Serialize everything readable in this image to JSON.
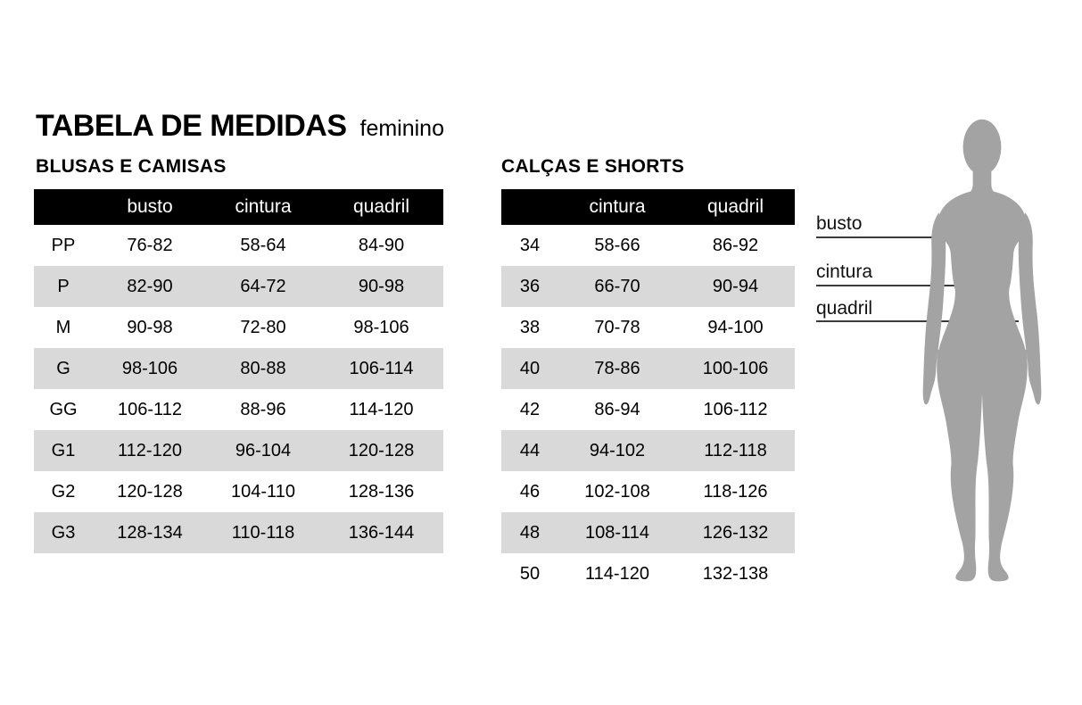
{
  "page": {
    "title": "TABELA DE MEDIDAS",
    "subtitle": "feminino"
  },
  "colors": {
    "table_header_bg": "#000000",
    "table_header_text": "#ffffff",
    "alt_row_bg": "#d9d9d9",
    "silhouette_gray": "#a3a3a3",
    "measure_line": "#3a3a3a"
  },
  "tables": [
    {
      "id": "blusas",
      "title": "BLUSAS E CAMISAS",
      "columns": [
        "",
        "busto",
        "cintura",
        "quadril"
      ],
      "rows": [
        [
          "PP",
          "76-82",
          "58-64",
          "84-90"
        ],
        [
          "P",
          "82-90",
          "64-72",
          "90-98"
        ],
        [
          "M",
          "90-98",
          "72-80",
          "98-106"
        ],
        [
          "G",
          "98-106",
          "80-88",
          "106-114"
        ],
        [
          "GG",
          "106-112",
          "88-96",
          "114-120"
        ],
        [
          "G1",
          "112-120",
          "96-104",
          "120-128"
        ],
        [
          "G2",
          "120-128",
          "104-110",
          "128-136"
        ],
        [
          "G3",
          "128-134",
          "110-118",
          "136-144"
        ]
      ]
    },
    {
      "id": "calcas",
      "title": "CALÇAS E SHORTS",
      "columns": [
        "",
        "cintura",
        "quadril"
      ],
      "rows": [
        [
          "34",
          "58-66",
          "86-92"
        ],
        [
          "36",
          "66-70",
          "90-94"
        ],
        [
          "38",
          "70-78",
          "94-100"
        ],
        [
          "40",
          "78-86",
          "100-106"
        ],
        [
          "42",
          "86-94",
          "106-112"
        ],
        [
          "44",
          "94-102",
          "112-118"
        ],
        [
          "46",
          "102-108",
          "118-126"
        ],
        [
          "48",
          "108-114",
          "126-132"
        ],
        [
          "50",
          "114-120",
          "132-138"
        ]
      ]
    }
  ],
  "figure": {
    "labels": [
      "busto",
      "cintura",
      "quadril"
    ]
  }
}
